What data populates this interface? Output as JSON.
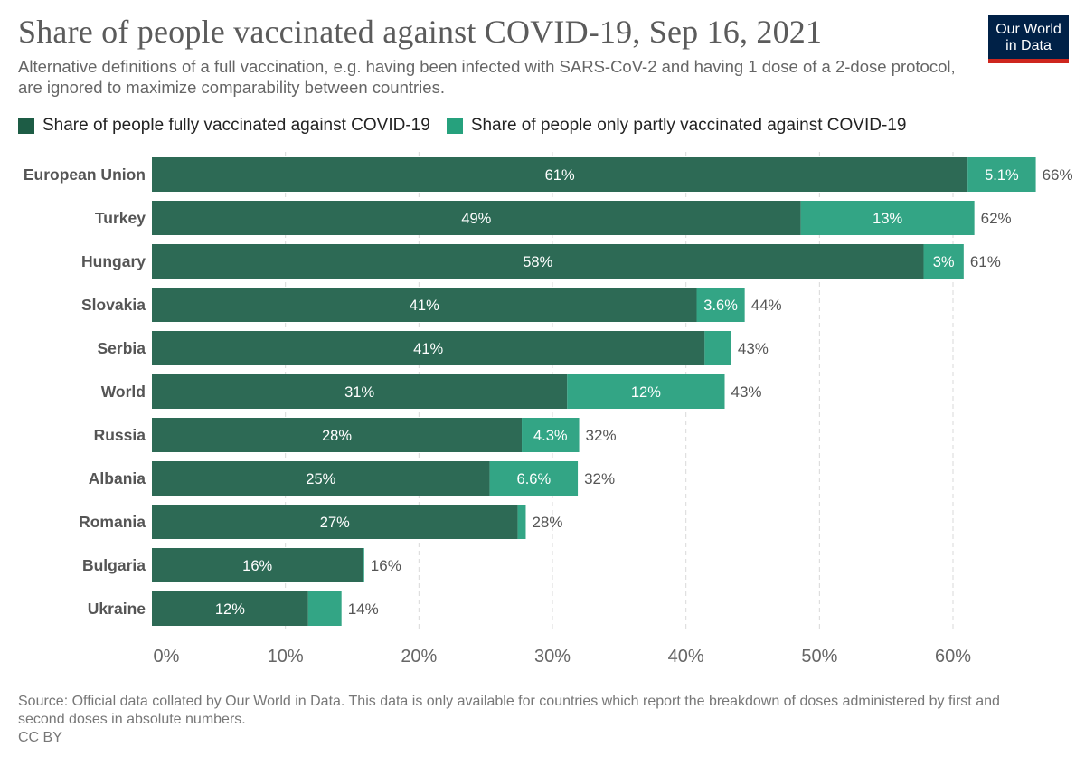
{
  "header": {
    "title": "Share of people vaccinated against COVID-19, Sep 16, 2021",
    "subtitle": "Alternative definitions of a full vaccination, e.g. having been infected with SARS-CoV-2 and having 1 dose of a 2-dose protocol, are ignored to maximize comparability between countries."
  },
  "logo": {
    "line1": "Our World",
    "line2": "in Data"
  },
  "colors": {
    "full": "#2d6a55",
    "partial": "#33a585",
    "legend_full": "#1d5c45",
    "legend_partial": "#26a17d",
    "grid": "#d9d9d9",
    "logo_bg": "#002147",
    "logo_bar": "#ce261e"
  },
  "chart_data": {
    "type": "bar",
    "orientation": "horizontal",
    "stacked": true,
    "title": "Share of people vaccinated against COVID-19, Sep 16, 2021",
    "categories": [
      "European Union",
      "Turkey",
      "Hungary",
      "Slovakia",
      "Serbia",
      "World",
      "Russia",
      "Albania",
      "Romania",
      "Bulgaria",
      "Ukraine"
    ],
    "series": [
      {
        "name": "Share of people fully vaccinated against COVID-19",
        "values": [
          61.1,
          48.6,
          57.8,
          40.8,
          41.4,
          31.1,
          27.7,
          25.3,
          27.4,
          15.8,
          11.7
        ],
        "labels": [
          "61%",
          "49%",
          "58%",
          "41%",
          "41%",
          "31%",
          "28%",
          "25%",
          "27%",
          "16%",
          "12%"
        ]
      },
      {
        "name": "Share of people only partly vaccinated against COVID-19",
        "values": [
          5.1,
          13.0,
          3.0,
          3.6,
          2.0,
          11.8,
          4.3,
          6.6,
          0.6,
          0.1,
          2.5
        ],
        "labels": [
          "5.1%",
          "13%",
          "3%",
          "3.6%",
          "",
          "12%",
          "4.3%",
          "6.6%",
          "",
          "",
          ""
        ]
      }
    ],
    "totals": [
      "66%",
      "62%",
      "61%",
      "44%",
      "43%",
      "43%",
      "32%",
      "32%",
      "28%",
      "16%",
      "14%"
    ],
    "xlim": [
      0,
      66.5
    ],
    "ticks": [
      0,
      10,
      20,
      30,
      40,
      50,
      60
    ],
    "tick_labels": [
      "0%",
      "10%",
      "20%",
      "30%",
      "40%",
      "50%",
      "60%"
    ],
    "grid": true,
    "legend_position": "top-left"
  },
  "footer": {
    "source": "Source: Official data collated by Our World in Data. This data is only available for countries which report the breakdown of doses administered by first and second doses in absolute numbers.",
    "license": "CC BY"
  }
}
